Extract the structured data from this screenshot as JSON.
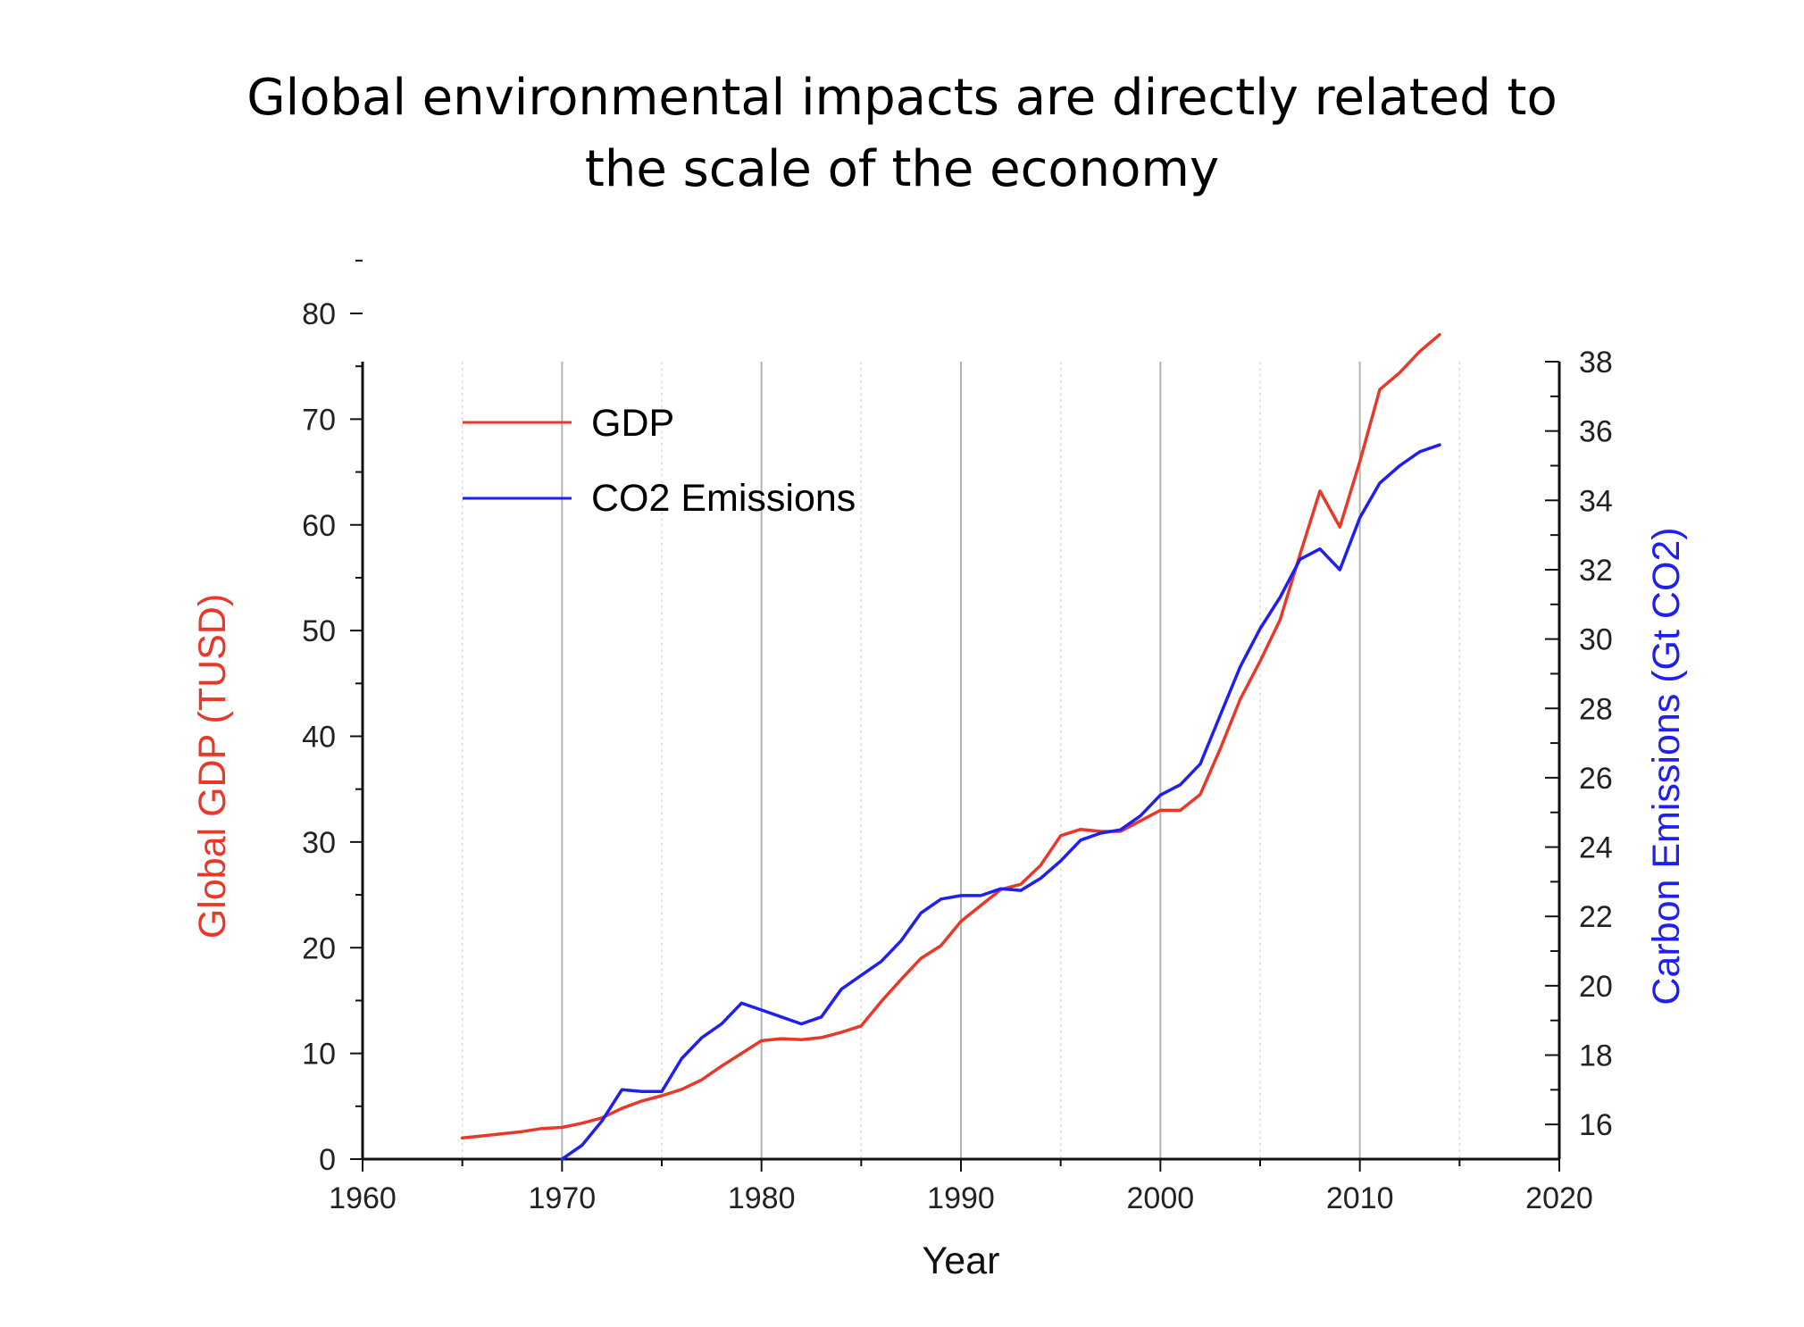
{
  "slide": {
    "title_line1": "Global environmental impacts are directly related to",
    "title_line2": "the scale of the economy"
  },
  "chart_data": {
    "type": "line",
    "xlabel": "Year",
    "ylabel_left": "Global GDP (TUSD)",
    "ylabel_right": "Carbon Emissions (Gt CO2)",
    "xlim": [
      1960,
      2020
    ],
    "xticks": [
      1960,
      1970,
      1980,
      1990,
      2000,
      2010,
      2020
    ],
    "ylim_left": [
      0,
      85
    ],
    "yticks_left": [
      0,
      10,
      20,
      30,
      40,
      50,
      60,
      70,
      80
    ],
    "ylim_right": [
      15,
      38
    ],
    "yticks_right": [
      16,
      18,
      20,
      22,
      24,
      26,
      28,
      30,
      32,
      34,
      36,
      38
    ],
    "grid": "vertical",
    "legend_placement": "top-left",
    "colors": {
      "gdp": "#e8382a",
      "co2": "#1f1ff0",
      "left_axis_label": "#e8382a",
      "right_axis_label": "#1f1ff0"
    },
    "series": [
      {
        "name": "GDP",
        "axis": "left",
        "x": [
          1965,
          1966,
          1967,
          1968,
          1969,
          1970,
          1971,
          1972,
          1973,
          1974,
          1975,
          1976,
          1977,
          1978,
          1979,
          1980,
          1981,
          1982,
          1983,
          1984,
          1985,
          1986,
          1987,
          1988,
          1989,
          1990,
          1991,
          1992,
          1993,
          1994,
          1995,
          1996,
          1997,
          1998,
          1999,
          2000,
          2001,
          2002,
          2003,
          2004,
          2005,
          2006,
          2007,
          2008,
          2009,
          2010,
          2011,
          2012,
          2013,
          2014
        ],
        "y": [
          2.0,
          2.2,
          2.4,
          2.6,
          2.9,
          3.0,
          3.4,
          3.9,
          4.8,
          5.5,
          6.0,
          6.6,
          7.5,
          8.8,
          10.0,
          11.2,
          11.4,
          11.3,
          11.5,
          12.0,
          12.6,
          14.9,
          17.0,
          19.0,
          20.2,
          22.5,
          24.0,
          25.5,
          26.0,
          27.8,
          30.6,
          31.2,
          31.0,
          31.0,
          32.0,
          33.0,
          33.0,
          34.5,
          38.8,
          43.5,
          47.1,
          51.0,
          57.2,
          63.2,
          59.8,
          66.0,
          72.8,
          74.4,
          76.4,
          78.0
        ]
      },
      {
        "name": "CO2 Emissions",
        "axis": "right",
        "x": [
          1970,
          1971,
          1972,
          1973,
          1974,
          1975,
          1976,
          1977,
          1978,
          1979,
          1980,
          1981,
          1982,
          1983,
          1984,
          1985,
          1986,
          1987,
          1988,
          1989,
          1990,
          1991,
          1992,
          1993,
          1994,
          1995,
          1996,
          1997,
          1998,
          1999,
          2000,
          2001,
          2002,
          2003,
          2004,
          2005,
          2006,
          2007,
          2008,
          2009,
          2010,
          2011,
          2012,
          2013,
          2014
        ],
        "y": [
          15.0,
          15.4,
          16.1,
          17.0,
          16.95,
          16.95,
          17.9,
          18.5,
          18.9,
          19.5,
          19.3,
          19.1,
          18.9,
          19.1,
          19.9,
          20.3,
          20.7,
          21.3,
          22.1,
          22.5,
          22.6,
          22.6,
          22.8,
          22.75,
          23.1,
          23.6,
          24.2,
          24.4,
          24.5,
          24.9,
          25.5,
          25.8,
          26.4,
          27.8,
          29.2,
          30.3,
          31.2,
          32.3,
          32.6,
          32.0,
          33.5,
          34.5,
          35.0,
          35.4,
          35.6
        ]
      }
    ]
  }
}
